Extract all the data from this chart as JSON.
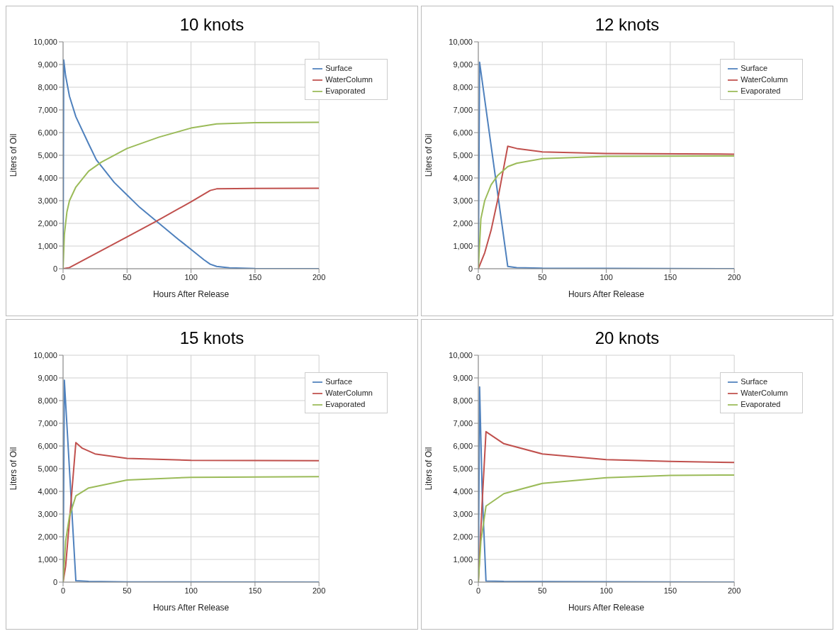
{
  "chart_data": [
    {
      "type": "line",
      "title": "10 knots",
      "xlabel": "Hours After Release",
      "ylabel": "Liters of Oil",
      "xlim": [
        0,
        200
      ],
      "xticks": [
        0,
        50,
        100,
        150,
        200
      ],
      "ylim": [
        0,
        10000
      ],
      "yticks": [
        {
          "value": 0,
          "label": "0"
        },
        {
          "value": 1000,
          "label": "1,000"
        },
        {
          "value": 2000,
          "label": "2,000"
        },
        {
          "value": 3000,
          "label": "3,000"
        },
        {
          "value": 4000,
          "label": "4,000"
        },
        {
          "value": 5000,
          "label": "5,000"
        },
        {
          "value": 6000,
          "label": "6,000"
        },
        {
          "value": 7000,
          "label": "7,000"
        },
        {
          "value": 8000,
          "label": "8,000"
        },
        {
          "value": 9000,
          "label": "9,000"
        },
        {
          "value": 10000,
          "label": "10,000"
        }
      ],
      "grid": true,
      "legend": "top right",
      "series": [
        {
          "name": "Surface",
          "color": "#4f81bd",
          "x": [
            0,
            0.5,
            2,
            5,
            10,
            20,
            26,
            40,
            50,
            60,
            75,
            90,
            100,
            110,
            115,
            120,
            130,
            150,
            200
          ],
          "values": [
            0,
            9200,
            8500,
            7600,
            6700,
            5500,
            4800,
            3800,
            3250,
            2700,
            2000,
            1300,
            850,
            400,
            200,
            100,
            40,
            10,
            0
          ]
        },
        {
          "name": "WaterColumn",
          "color": "#c0504d",
          "x": [
            0,
            5,
            50,
            73,
            100,
            115,
            120,
            150,
            200
          ],
          "values": [
            0,
            50,
            1400,
            2100,
            2950,
            3450,
            3520,
            3540,
            3550
          ]
        },
        {
          "name": "Evaporated",
          "color": "#9bbb59",
          "x": [
            0,
            1,
            3,
            5,
            10,
            20,
            30,
            50,
            75,
            100,
            120,
            150,
            200
          ],
          "values": [
            0,
            1500,
            2500,
            3000,
            3600,
            4300,
            4700,
            5300,
            5800,
            6200,
            6380,
            6440,
            6450
          ]
        }
      ]
    },
    {
      "type": "line",
      "title": "12 knots",
      "xlabel": "Hours After Release",
      "ylabel": "Liters of Oil",
      "xlim": [
        0,
        200
      ],
      "xticks": [
        0,
        50,
        100,
        150,
        200
      ],
      "ylim": [
        0,
        10000
      ],
      "yticks": [
        {
          "value": 0,
          "label": "0"
        },
        {
          "value": 1000,
          "label": "1,000"
        },
        {
          "value": 2000,
          "label": "2,000"
        },
        {
          "value": 3000,
          "label": "3,000"
        },
        {
          "value": 4000,
          "label": "4,000"
        },
        {
          "value": 5000,
          "label": "5,000"
        },
        {
          "value": 6000,
          "label": "6,000"
        },
        {
          "value": 7000,
          "label": "7,000"
        },
        {
          "value": 8000,
          "label": "8,000"
        },
        {
          "value": 9000,
          "label": "9,000"
        },
        {
          "value": 10000,
          "label": "10,000"
        }
      ],
      "grid": true,
      "legend": "top right",
      "series": [
        {
          "name": "Surface",
          "color": "#4f81bd",
          "x": [
            0,
            1,
            23,
            30,
            50,
            200
          ],
          "values": [
            0,
            9100,
            100,
            50,
            20,
            0
          ]
        },
        {
          "name": "WaterColumn",
          "color": "#c0504d",
          "x": [
            0,
            5,
            10,
            15,
            23,
            30,
            50,
            100,
            200
          ],
          "values": [
            0,
            700,
            1700,
            3000,
            5400,
            5300,
            5150,
            5080,
            5050
          ]
        },
        {
          "name": "Evaporated",
          "color": "#9bbb59",
          "x": [
            0,
            2,
            5,
            10,
            15,
            23,
            30,
            50,
            100,
            200
          ],
          "values": [
            0,
            2200,
            3000,
            3700,
            4100,
            4500,
            4650,
            4850,
            4950,
            4970
          ]
        }
      ]
    },
    {
      "type": "line",
      "title": "15 knots",
      "xlabel": "Hours After Release",
      "ylabel": "Liters of Oil",
      "xlim": [
        0,
        200
      ],
      "xticks": [
        0,
        50,
        100,
        150,
        200
      ],
      "ylim": [
        0,
        10000
      ],
      "yticks": [
        {
          "value": 0,
          "label": "0"
        },
        {
          "value": 1000,
          "label": "1,000"
        },
        {
          "value": 2000,
          "label": "2,000"
        },
        {
          "value": 3000,
          "label": "3,000"
        },
        {
          "value": 4000,
          "label": "4,000"
        },
        {
          "value": 5000,
          "label": "5,000"
        },
        {
          "value": 6000,
          "label": "6,000"
        },
        {
          "value": 7000,
          "label": "7,000"
        },
        {
          "value": 8000,
          "label": "8,000"
        },
        {
          "value": 9000,
          "label": "9,000"
        },
        {
          "value": 10000,
          "label": "10,000"
        }
      ],
      "grid": true,
      "legend": "top right",
      "series": [
        {
          "name": "Surface",
          "color": "#4f81bd",
          "x": [
            0,
            1,
            10,
            20,
            50,
            200
          ],
          "values": [
            0,
            8900,
            60,
            30,
            10,
            0
          ]
        },
        {
          "name": "WaterColumn",
          "color": "#c0504d",
          "x": [
            0,
            2,
            5,
            10,
            15,
            25,
            50,
            100,
            200
          ],
          "values": [
            0,
            700,
            2700,
            6150,
            5900,
            5650,
            5450,
            5370,
            5350
          ]
        },
        {
          "name": "Evaporated",
          "color": "#9bbb59",
          "x": [
            0,
            2,
            5,
            10,
            20,
            50,
            100,
            200
          ],
          "values": [
            0,
            1800,
            2900,
            3800,
            4150,
            4500,
            4620,
            4650
          ]
        }
      ]
    },
    {
      "type": "line",
      "title": "20 knots",
      "xlabel": "Hours After Release",
      "ylabel": "Liters of Oil",
      "xlim": [
        0,
        200
      ],
      "xticks": [
        0,
        50,
        100,
        150,
        200
      ],
      "ylim": [
        0,
        10000
      ],
      "yticks": [
        {
          "value": 0,
          "label": "0"
        },
        {
          "value": 1000,
          "label": "1,000"
        },
        {
          "value": 2000,
          "label": "2,000"
        },
        {
          "value": 3000,
          "label": "3,000"
        },
        {
          "value": 4000,
          "label": "4,000"
        },
        {
          "value": 5000,
          "label": "5,000"
        },
        {
          "value": 6000,
          "label": "6,000"
        },
        {
          "value": 7000,
          "label": "7,000"
        },
        {
          "value": 8000,
          "label": "8,000"
        },
        {
          "value": 9000,
          "label": "9,000"
        },
        {
          "value": 10000,
          "label": "10,000"
        }
      ],
      "grid": true,
      "legend": "top right",
      "series": [
        {
          "name": "Surface",
          "color": "#4f81bd",
          "x": [
            0,
            1,
            3,
            6,
            20,
            200
          ],
          "values": [
            0,
            8600,
            4000,
            50,
            30,
            0
          ]
        },
        {
          "name": "WaterColumn",
          "color": "#c0504d",
          "x": [
            0,
            3,
            6,
            20,
            50,
            100,
            150,
            200
          ],
          "values": [
            0,
            3500,
            6630,
            6100,
            5650,
            5400,
            5320,
            5270
          ]
        },
        {
          "name": "Evaporated",
          "color": "#9bbb59",
          "x": [
            0,
            2,
            6,
            20,
            50,
            100,
            150,
            200
          ],
          "values": [
            0,
            1800,
            3350,
            3900,
            4350,
            4600,
            4700,
            4720
          ]
        }
      ]
    }
  ]
}
